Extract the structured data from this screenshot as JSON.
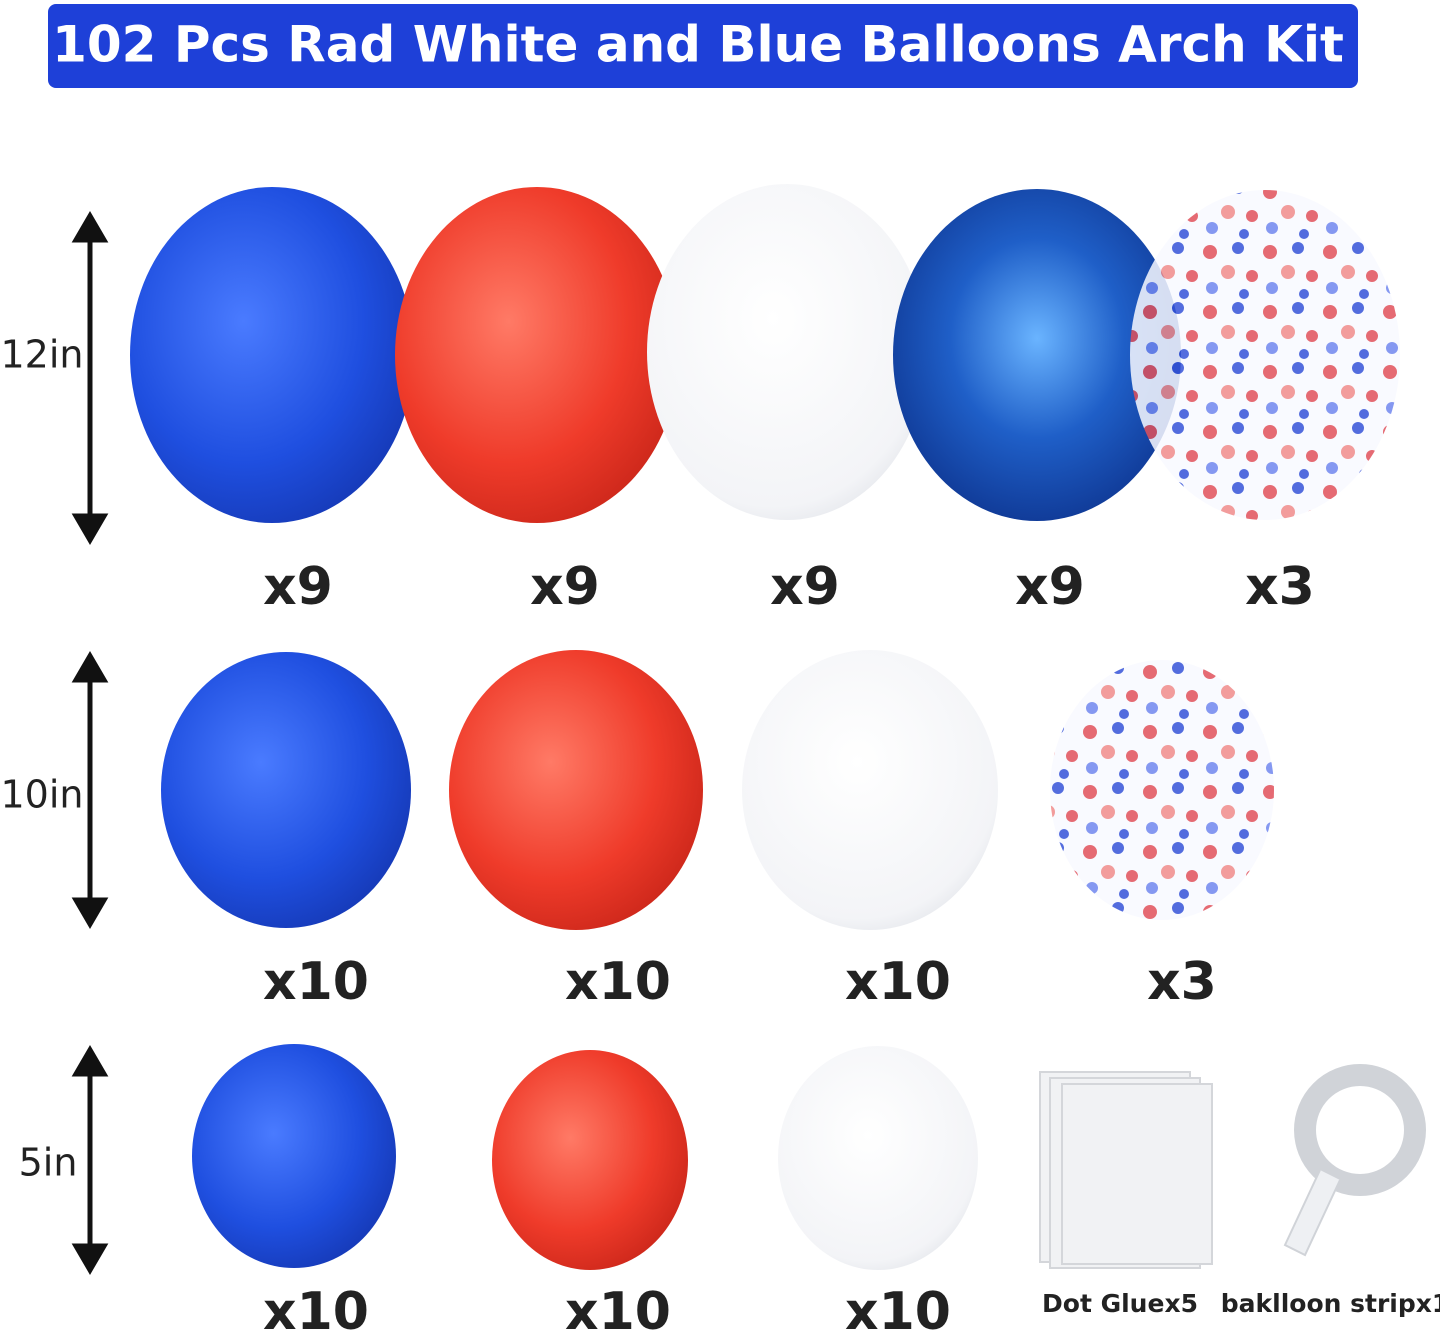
{
  "title": "102  Pcs  Rad White and Blue Balloons Arch Kit",
  "rows": [
    {
      "size": "12in",
      "counts": [
        "x9",
        "x9",
        "x9",
        "x9",
        "x3"
      ]
    },
    {
      "size": "10in",
      "counts": [
        "x10",
        "x10",
        "x10",
        "x3"
      ]
    },
    {
      "size": "5in",
      "counts": [
        "x10",
        "x10",
        "x10"
      ]
    }
  ],
  "accessories": [
    "Dot Gluex5",
    "baklloon stripx1"
  ]
}
